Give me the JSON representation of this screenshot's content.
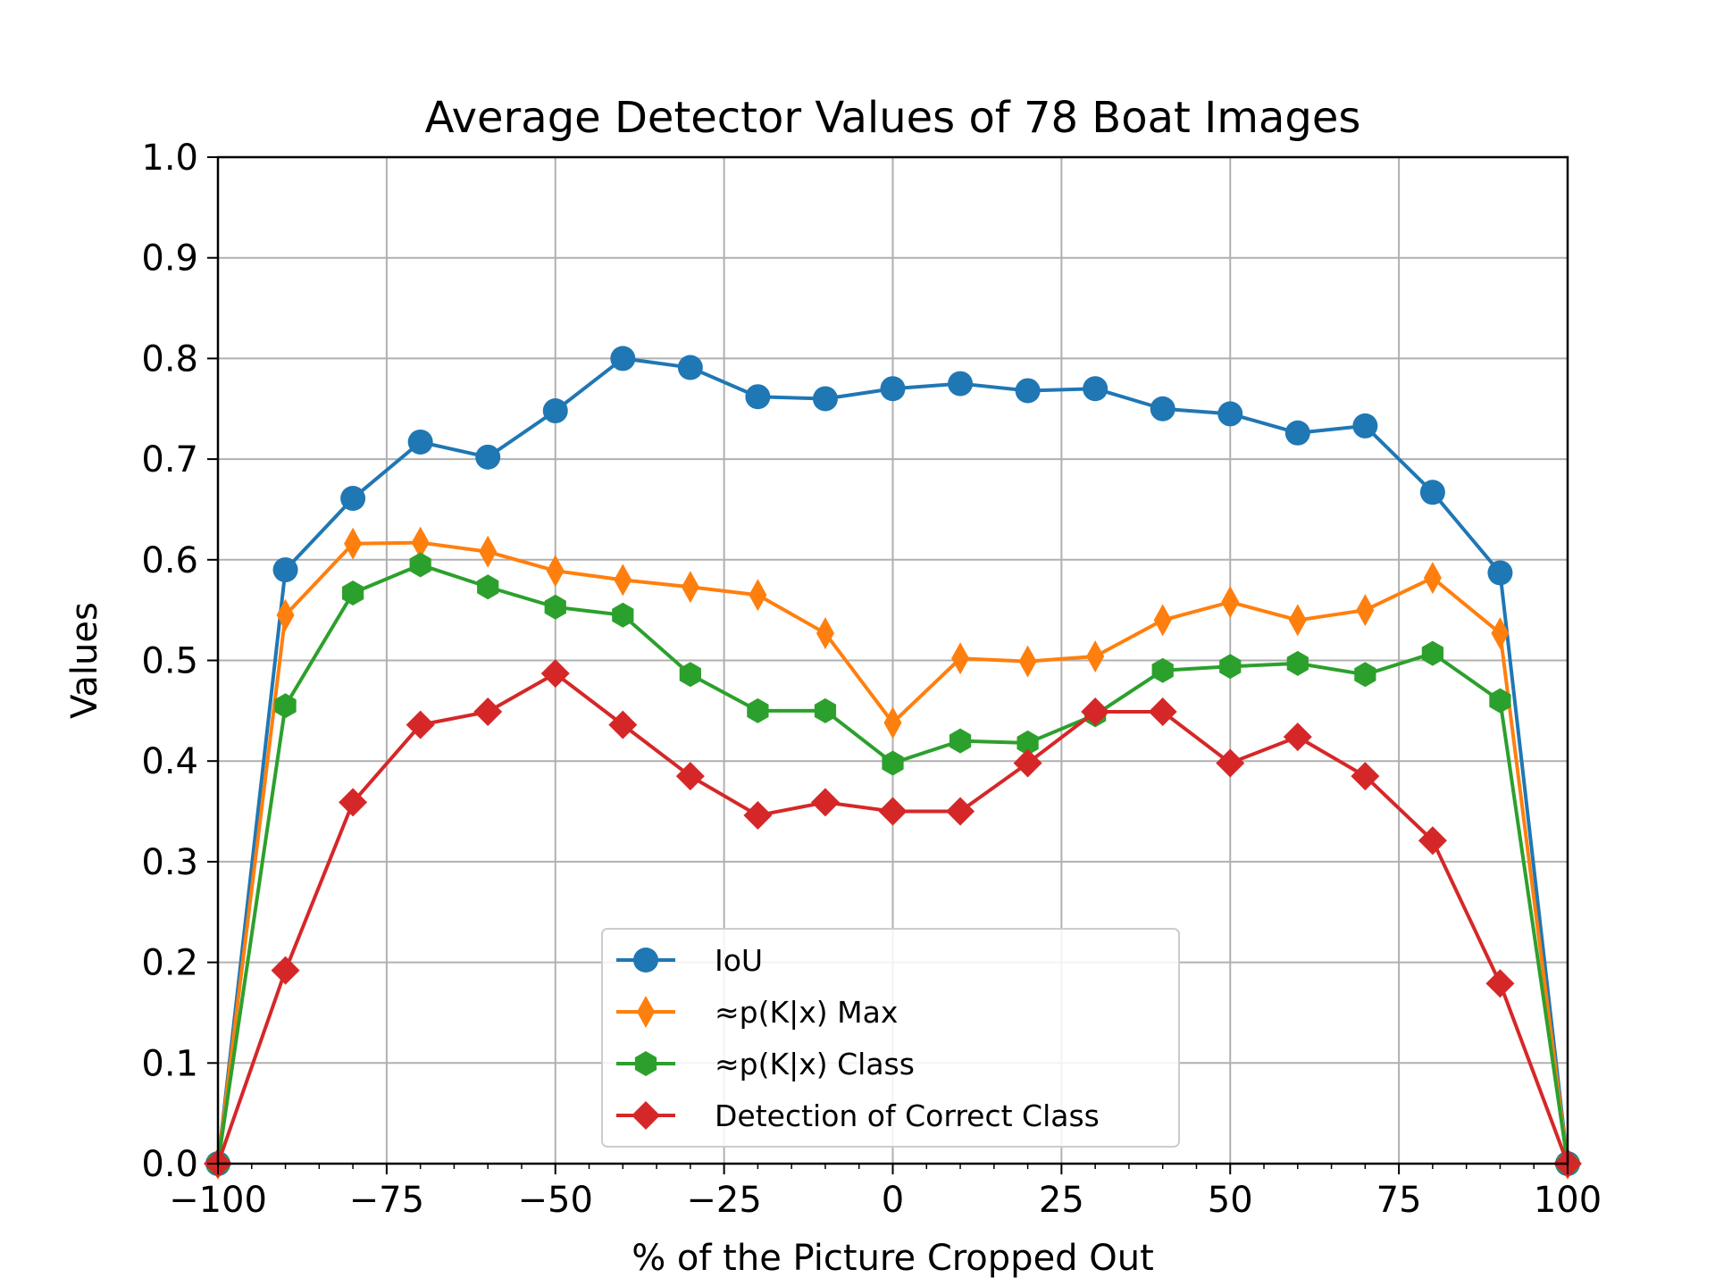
{
  "chart_data": {
    "type": "line",
    "title": "Average Detector Values of 78 Boat Images",
    "xlabel": "% of the Picture Cropped Out",
    "ylabel": "Values",
    "xlim": [
      -100,
      100
    ],
    "ylim": [
      0.0,
      1.0
    ],
    "xticks": [
      -100,
      -75,
      -50,
      -25,
      0,
      25,
      50,
      75,
      100
    ],
    "xtick_labels": [
      "−100",
      "−75",
      "−50",
      "−25",
      "0",
      "25",
      "50",
      "75",
      "100"
    ],
    "yticks": [
      0.0,
      0.1,
      0.2,
      0.3,
      0.4,
      0.5,
      0.6,
      0.7,
      0.8,
      0.9,
      1.0
    ],
    "ytick_labels": [
      "0.0",
      "0.1",
      "0.2",
      "0.3",
      "0.4",
      "0.5",
      "0.6",
      "0.7",
      "0.8",
      "0.9",
      "1.0"
    ],
    "grid": true,
    "legend_position": "lower center",
    "x": [
      -100,
      -90,
      -80,
      -70,
      -60,
      -50,
      -40,
      -30,
      -20,
      -10,
      0,
      10,
      20,
      30,
      40,
      50,
      60,
      70,
      80,
      90,
      100
    ],
    "series": [
      {
        "name": "IoU",
        "color": "#1f77b4",
        "marker": "circle",
        "values": [
          0.0,
          0.59,
          0.661,
          0.717,
          0.702,
          0.748,
          0.8,
          0.791,
          0.762,
          0.76,
          0.77,
          0.775,
          0.768,
          0.77,
          0.75,
          0.745,
          0.726,
          0.733,
          0.667,
          0.587,
          0.0
        ]
      },
      {
        "name": "≈p(K|x) Max",
        "color": "#ff7f0e",
        "marker": "thin-diamond",
        "values": [
          0.0,
          0.545,
          0.616,
          0.617,
          0.608,
          0.589,
          0.58,
          0.573,
          0.565,
          0.527,
          0.438,
          0.502,
          0.499,
          0.504,
          0.54,
          0.558,
          0.54,
          0.55,
          0.582,
          0.527,
          0.0
        ]
      },
      {
        "name": "≈p(K|x) Class",
        "color": "#2ca02c",
        "marker": "hexagon",
        "values": [
          0.0,
          0.455,
          0.567,
          0.595,
          0.573,
          0.553,
          0.545,
          0.486,
          0.45,
          0.45,
          0.398,
          0.42,
          0.418,
          0.446,
          0.49,
          0.494,
          0.497,
          0.486,
          0.507,
          0.46,
          0.0
        ]
      },
      {
        "name": "Detection of Correct Class",
        "color": "#d62728",
        "marker": "diamond",
        "values": [
          0.0,
          0.192,
          0.359,
          0.436,
          0.449,
          0.487,
          0.436,
          0.385,
          0.346,
          0.359,
          0.35,
          0.35,
          0.398,
          0.449,
          0.449,
          0.398,
          0.424,
          0.385,
          0.321,
          0.179,
          0.0
        ]
      }
    ]
  }
}
